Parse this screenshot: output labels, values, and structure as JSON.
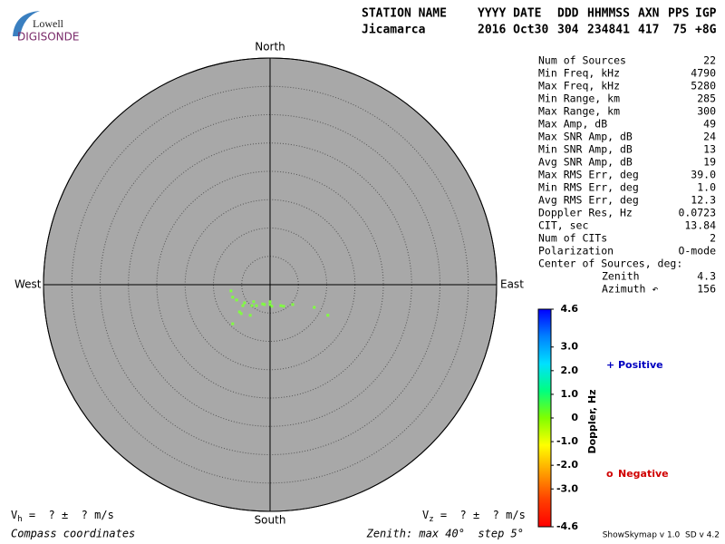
{
  "logo": {
    "top": "Lowell",
    "bottom": "DIGISONDE"
  },
  "header": {
    "columns": [
      {
        "label": "STATION NAME",
        "value": "Jicamarca"
      },
      {
        "label": "YYYY DATE",
        "value": "2016 Oct30"
      },
      {
        "label": "DDD",
        "value": "304"
      },
      {
        "label": "HHMMSS",
        "value": "234841"
      },
      {
        "label": "AXN",
        "value": "417"
      },
      {
        "label": "PPS",
        "value": "75"
      },
      {
        "label": "IGP",
        "value": "+8G"
      }
    ]
  },
  "stats": {
    "rows": [
      [
        "Num of Sources",
        "22"
      ],
      [
        "Min Freq, kHz",
        "4790"
      ],
      [
        "Max Freq, kHz",
        "5280"
      ],
      [
        "Min Range, km",
        "285"
      ],
      [
        "Max Range, km",
        "300"
      ],
      [
        "Max Amp, dB",
        "49"
      ],
      [
        "Max SNR Amp, dB",
        "24"
      ],
      [
        "Min SNR Amp, dB",
        "13"
      ],
      [
        "Avg SNR Amp, dB",
        "19"
      ],
      [
        "Max RMS Err, deg",
        "39.0"
      ],
      [
        "Min RMS Err, deg",
        "1.0"
      ],
      [
        "Avg RMS Err, deg",
        "12.3"
      ],
      [
        "Doppler Res, Hz",
        "0.0723"
      ],
      [
        "CIT, sec",
        "13.84"
      ],
      [
        "Num of CITs",
        "2"
      ],
      [
        "Polarization",
        "O-mode"
      ]
    ],
    "center_title": "Center of Sources, deg:",
    "center_rows": [
      [
        "Zenith",
        "4.3"
      ],
      [
        "Azimuth ↶",
        "156"
      ]
    ]
  },
  "chart_data": {
    "type": "polar-scatter",
    "compass": {
      "north": "North",
      "south": "South",
      "east": "East",
      "west": "West"
    },
    "rlim": [
      0,
      40
    ],
    "rticks": [
      5,
      10,
      15,
      20,
      25,
      30,
      35,
      40
    ],
    "color": "#80ff40",
    "x": [
      -6.9,
      -6.6,
      -5.9,
      -4.8,
      -4.5,
      -3.2,
      -2.9,
      -2.4,
      -1.3,
      -1.0,
      0.0,
      0.3,
      1.9,
      2.4,
      4.0,
      7.8,
      10.2,
      -5.4,
      -5.1,
      -3.5,
      -6.6,
      0.0
    ],
    "values": [
      -1.1,
      -2.2,
      -2.7,
      -3.7,
      -3.2,
      -3.7,
      -3.0,
      -3.7,
      -3.4,
      -3.5,
      -3.5,
      -3.8,
      -3.7,
      -3.8,
      -3.5,
      -4.0,
      -5.4,
      -4.8,
      -5.1,
      -5.4,
      -6.9,
      -3.0
    ],
    "colorbar": {
      "label": "Doppler, Hz",
      "lim": [
        -4.6,
        4.6
      ],
      "ticks": [
        4.6,
        {
          "value": 3,
          "label": "3.0"
        },
        {
          "value": 2,
          "label": "2.0"
        },
        {
          "value": 1,
          "label": "1.0"
        },
        0,
        {
          "value": -1,
          "label": "-1.0"
        },
        {
          "value": -2,
          "label": "-2.0"
        },
        {
          "value": -3,
          "label": "-3.0"
        },
        -4.6
      ],
      "colors": [
        "#0000ff",
        "#0080ff",
        "#00e0ff",
        "#00ff80",
        "#80ff00",
        "#ffff00",
        "#ffa000",
        "#ff4000",
        "#ff0000"
      ]
    },
    "legend": [
      {
        "symbol": "+",
        "name": "Positive",
        "color": "#0000c0"
      },
      {
        "symbol": "o",
        "name": "Negative",
        "color": "#d00000"
      }
    ]
  },
  "footer": {
    "vh": {
      "symbol": "V",
      "subscript": "h",
      "text": " =  ? ±  ? m/s"
    },
    "vz": {
      "symbol": "V",
      "subscript": "z",
      "text": " =  ? ±  ? m/s"
    },
    "coords": "Compass coordinates",
    "zenith": "Zenith: max 40°  step 5°",
    "version": "ShowSkymap v 1.0  SD v 4.2"
  }
}
